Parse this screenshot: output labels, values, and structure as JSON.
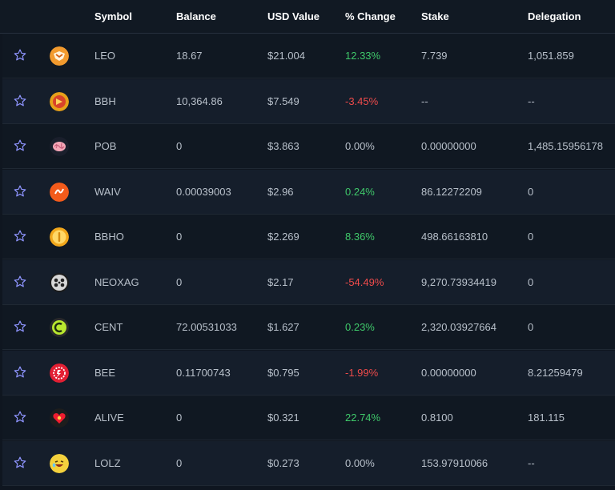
{
  "header": {
    "symbol": "Symbol",
    "balance": "Balance",
    "usd_value": "USD Value",
    "change": "% Change",
    "stake": "Stake",
    "delegation": "Delegation"
  },
  "colors": {
    "positive": "#3fc86a",
    "negative": "#ee4b4b",
    "star_outline": "#8f95ff"
  },
  "rows": [
    {
      "symbol": "LEO",
      "balance": "18.67",
      "usd": "$21.004",
      "change": "12.33%",
      "trend": "pos",
      "stake": "7.739",
      "delegation": "1,051.859",
      "icon": "leo-lion-icon"
    },
    {
      "symbol": "BBH",
      "balance": "10,364.86",
      "usd": "$7.549",
      "change": "-3.45%",
      "trend": "neg",
      "stake": "--",
      "delegation": "--",
      "icon": "bbh-token-icon"
    },
    {
      "symbol": "POB",
      "balance": "0",
      "usd": "$3.863",
      "change": "0.00%",
      "trend": "neu",
      "stake": "0.00000000",
      "delegation": "1,485.15956178",
      "icon": "brain-icon"
    },
    {
      "symbol": "WAIV",
      "balance": "0.00039003",
      "usd": "$2.96",
      "change": "0.24%",
      "trend": "pos",
      "stake": "86.12272209",
      "delegation": "0",
      "icon": "waiv-token-icon"
    },
    {
      "symbol": "BBHO",
      "balance": "0",
      "usd": "$2.269",
      "change": "8.36%",
      "trend": "pos",
      "stake": "498.66163810",
      "delegation": "0",
      "icon": "gold-coin-icon"
    },
    {
      "symbol": "NEOXAG",
      "balance": "0",
      "usd": "$2.17",
      "change": "-54.49%",
      "trend": "neg",
      "stake": "9,270.73934419",
      "delegation": "0",
      "icon": "film-reel-icon"
    },
    {
      "symbol": "CENT",
      "balance": "72.00531033",
      "usd": "$1.627",
      "change": "0.23%",
      "trend": "pos",
      "stake": "2,320.03927664",
      "delegation": "0",
      "icon": "cent-coin-icon"
    },
    {
      "symbol": "BEE",
      "balance": "0.11700743",
      "usd": "$0.795",
      "change": "-1.99%",
      "trend": "neg",
      "stake": "0.00000000",
      "delegation": "8.21259479",
      "icon": "bee-gear-icon"
    },
    {
      "symbol": "ALIVE",
      "balance": "0",
      "usd": "$0.321",
      "change": "22.74%",
      "trend": "pos",
      "stake": "0.8100",
      "delegation": "181.115",
      "icon": "heart-icon"
    },
    {
      "symbol": "LOLZ",
      "balance": "0",
      "usd": "$0.273",
      "change": "0.00%",
      "trend": "neu",
      "stake": "153.97910066",
      "delegation": "--",
      "icon": "laughing-face-icon"
    }
  ]
}
